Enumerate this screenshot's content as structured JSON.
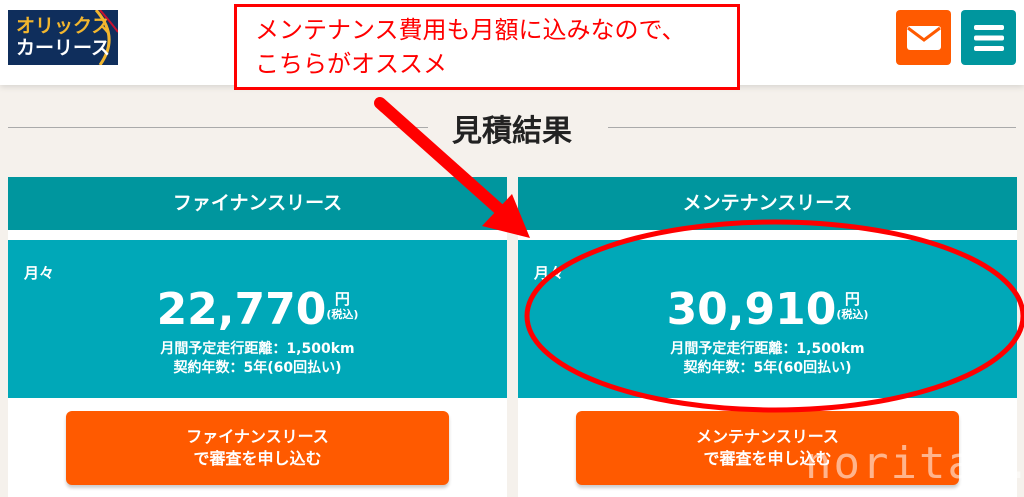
{
  "header": {
    "logo_line1": "オリックス",
    "logo_line2": "カーリース",
    "mail_icon": "mail-icon",
    "menu_icon": "hamburger-menu-icon"
  },
  "annotation": {
    "line1": "メンテナンス費用も月額に込みなので、",
    "line2": "こちらがオススメ",
    "color": "#ff0000"
  },
  "page_title": "見積結果",
  "plans": [
    {
      "name": "ファイナンスリース",
      "monthly_label": "月々",
      "price": "22,770",
      "unit": "円",
      "tax": "(税込)",
      "distance": "月間予定走行距離：1,500km",
      "term": "契約年数：5年(60回払い)",
      "cta_line1": "ファイナンスリース",
      "cta_line2": "で審査を申し込む"
    },
    {
      "name": "メンテナンスリース",
      "monthly_label": "月々",
      "price": "30,910",
      "unit": "円",
      "tax": "(税込)",
      "distance": "月間予定走行距離：1,500km",
      "term": "契約年数：5年(60回払い)",
      "cta_line1": "メンテナンスリース",
      "cta_line2": "で審査を申し込む"
    }
  ],
  "watermark": "noritai.c",
  "colors": {
    "teal_header": "#00969e",
    "teal_body": "#00a8b8",
    "orange": "#ff5a00",
    "background": "#f5f1ec"
  }
}
